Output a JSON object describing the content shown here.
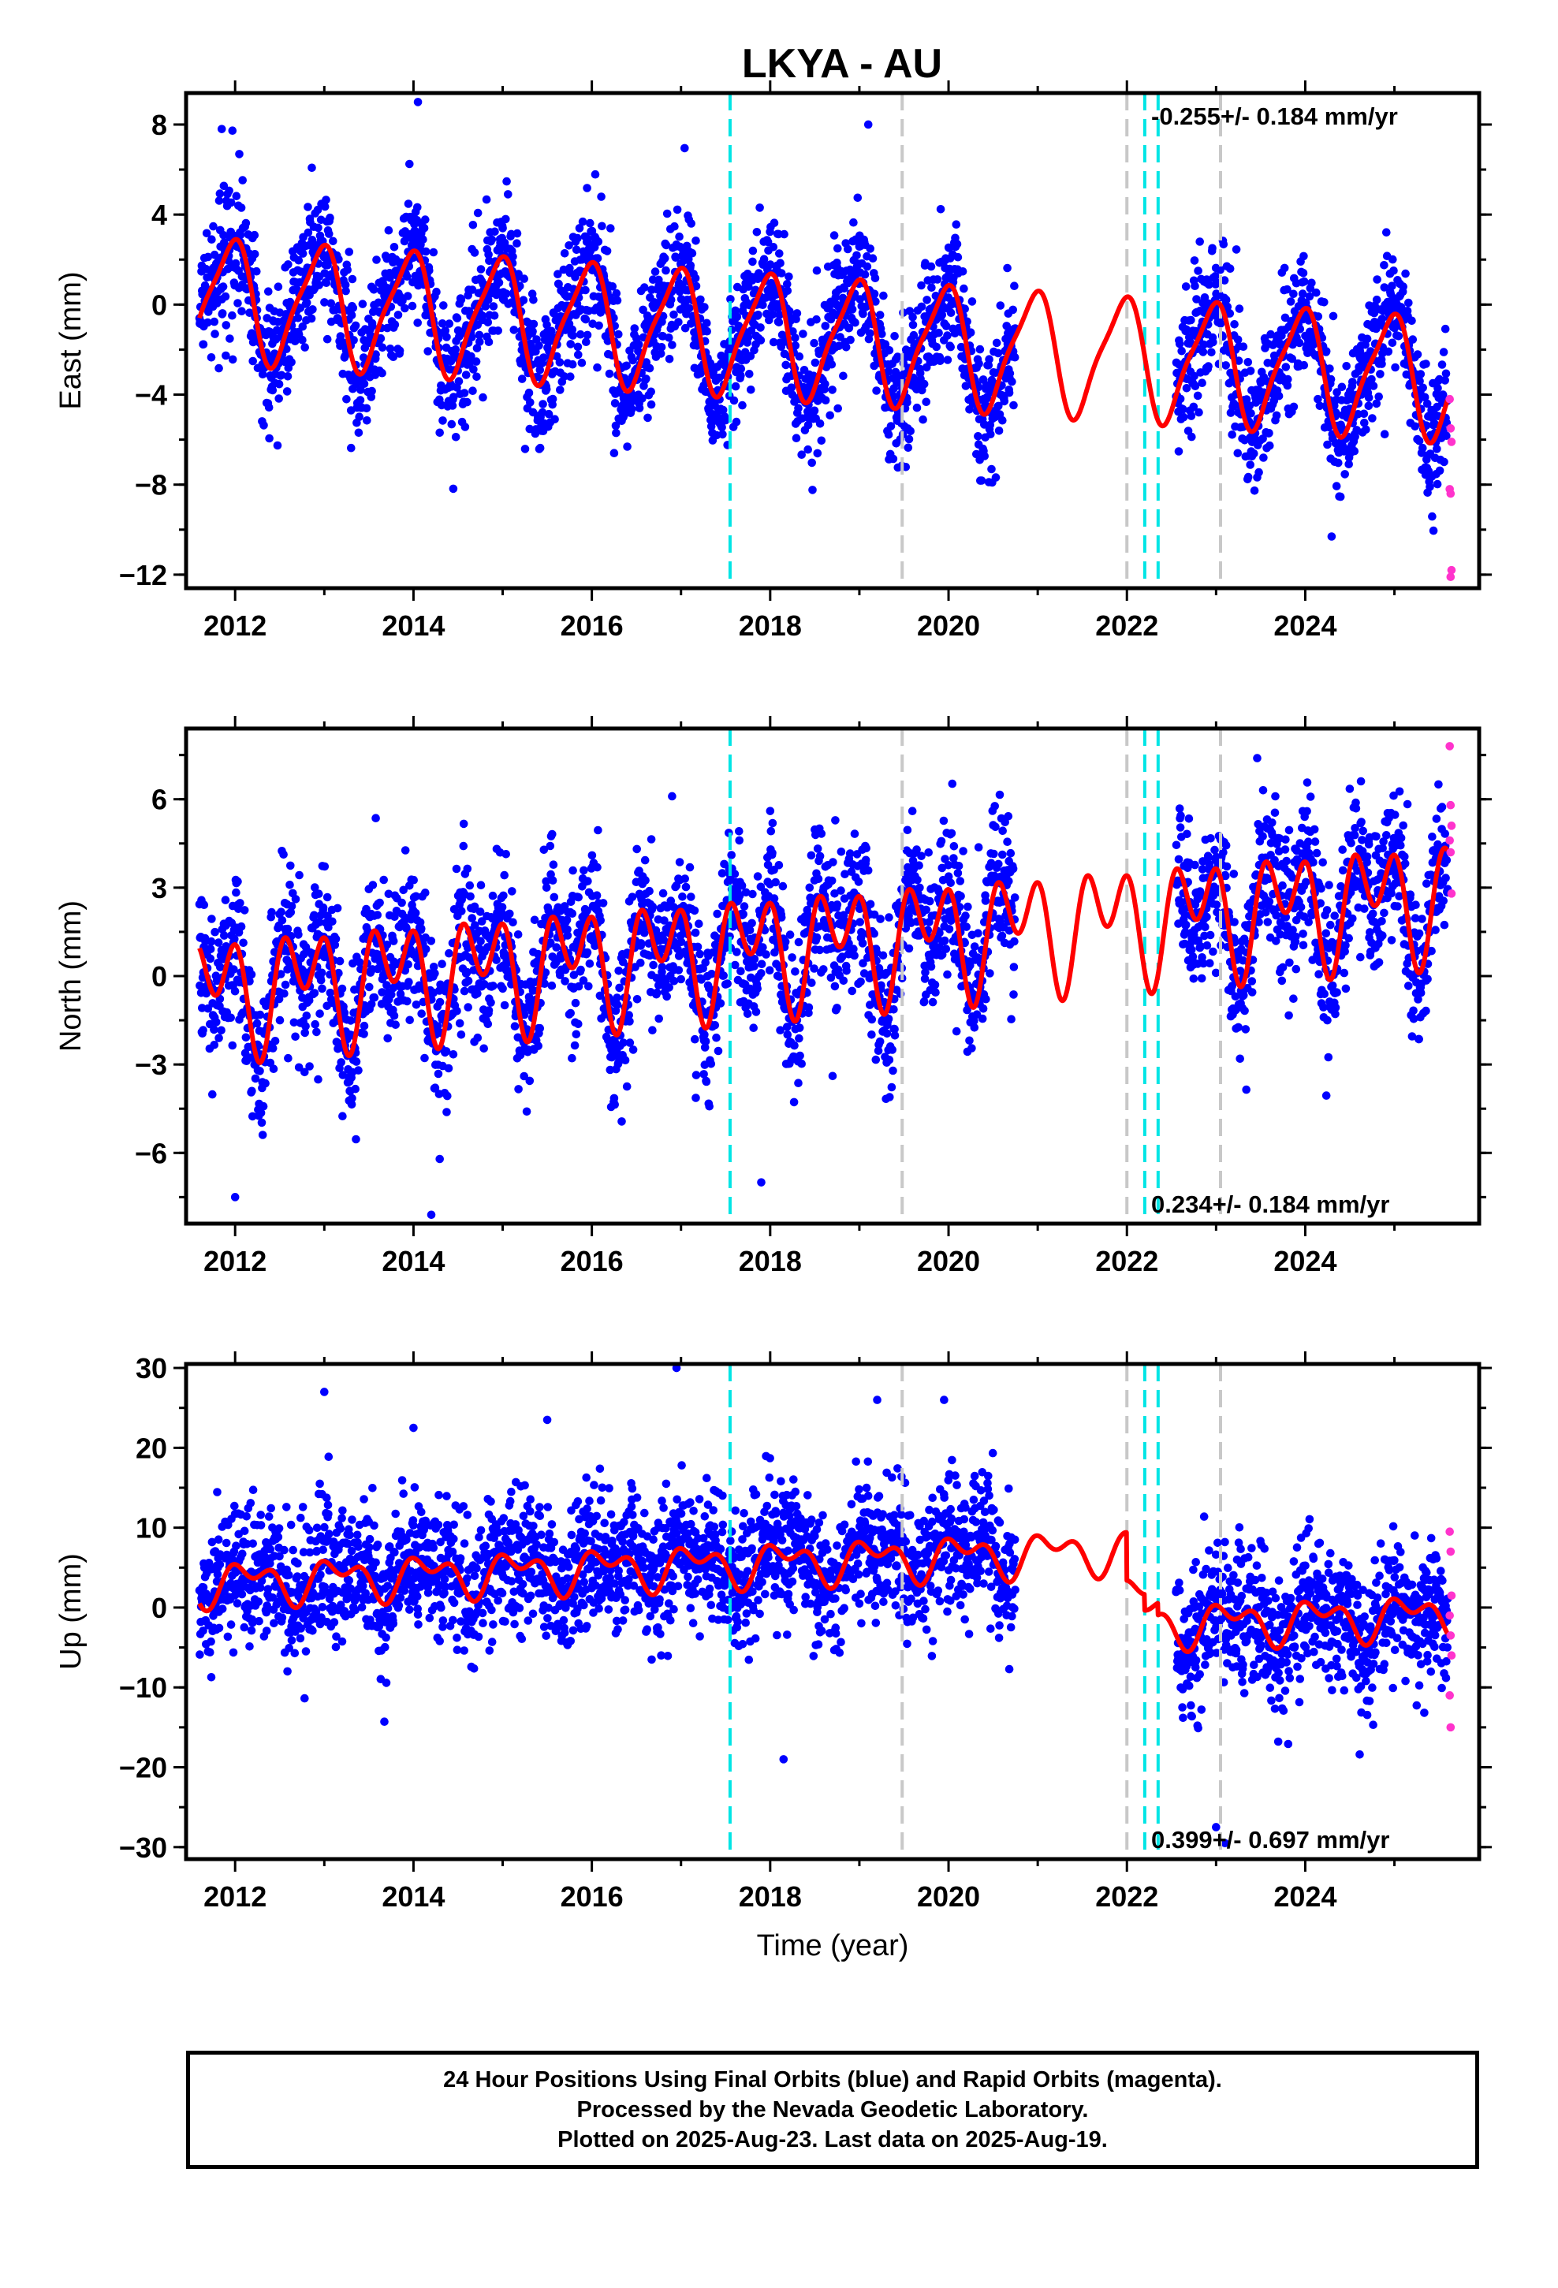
{
  "title": "LKYA - AU",
  "footer": {
    "line1": "24 Hour Positions Using Final Orbits (blue) and Rapid Orbits (magenta).",
    "line2": "Processed by the Nevada Geodetic Laboratory.",
    "line3": "Plotted on 2025-Aug-23. Last data on 2025-Aug-19."
  },
  "colors": {
    "final_orbits": "#0000ff",
    "rapid_orbits": "#ff33cc",
    "model": "#ff0000",
    "equipment_change": "#00e5e5",
    "other_event": "#c8c8c8"
  },
  "chart_data": [
    {
      "type": "scatter",
      "name": "east",
      "ylabel": "East (mm)",
      "xlabel": "",
      "xlim": [
        2011.45,
        2025.95
      ],
      "ylim": [
        -12.6,
        9.4
      ],
      "yticks": [
        -12,
        -8,
        -4,
        0,
        4,
        8
      ],
      "xticks": [
        2012,
        2014,
        2016,
        2018,
        2020,
        2022,
        2024
      ],
      "rate_label": "-0.255+/- 0.184 mm/yr",
      "rate_label_position": "top-right",
      "model": {
        "offset": 0.3,
        "trend": -0.255,
        "annual": 2.6,
        "annual_phase": 1.9,
        "semi": 0.6,
        "semi_phase": 0.4
      },
      "scatter_sigma": 1.5,
      "outliers": [
        [
          2011.85,
          7.8
        ],
        [
          2014.05,
          9.0
        ],
        [
          2019.1,
          8.0
        ],
        [
          2016.25,
          -6.6
        ],
        [
          2020.35,
          -6.9
        ],
        [
          2013.3,
          -4.7
        ]
      ],
      "rapid_points": [
        [
          2025.62,
          -4.2
        ],
        [
          2025.63,
          -5.5
        ],
        [
          2025.64,
          -6.1
        ],
        [
          2025.62,
          -8.2
        ],
        [
          2025.63,
          -8.4
        ],
        [
          2025.64,
          -11.8
        ],
        [
          2025.63,
          -12.1
        ]
      ]
    },
    {
      "type": "scatter",
      "name": "north",
      "ylabel": "North (mm)",
      "xlabel": "",
      "xlim": [
        2011.45,
        2025.95
      ],
      "ylim": [
        -8.4,
        8.4
      ],
      "yticks": [
        -6,
        -3,
        0,
        3,
        6
      ],
      "xticks": [
        2012,
        2014,
        2016,
        2018,
        2020,
        2022,
        2024
      ],
      "rate_label": "0.234+/- 0.184 mm/yr",
      "rate_label_position": "bottom-right",
      "model": {
        "offset": -0.5,
        "trend": 0.234,
        "annual": 1.2,
        "annual_phase": 3.0,
        "semi": 1.4,
        "semi_phase": 1.2
      },
      "scatter_sigma": 1.3,
      "outliers": [
        [
          2016.9,
          6.1
        ],
        [
          2018.0,
          5.6
        ],
        [
          2014.2,
          -8.1
        ],
        [
          2017.9,
          -7.0
        ],
        [
          2012.0,
          -7.5
        ]
      ],
      "rapid_points": [
        [
          2025.62,
          7.8
        ],
        [
          2025.63,
          5.8
        ],
        [
          2025.64,
          5.1
        ],
        [
          2025.62,
          4.6
        ],
        [
          2025.63,
          4.2
        ],
        [
          2025.64,
          2.8
        ]
      ]
    },
    {
      "type": "scatter",
      "name": "up",
      "ylabel": "Up (mm)",
      "xlabel": "Time (year)",
      "xlim": [
        2011.45,
        2025.95
      ],
      "ylim": [
        -31.5,
        30.5
      ],
      "yticks": [
        -30,
        -20,
        -10,
        0,
        10,
        20,
        30
      ],
      "xticks": [
        2012,
        2014,
        2016,
        2018,
        2020,
        2022,
        2024
      ],
      "rate_label": "0.399+/- 0.697 mm/yr",
      "rate_label_position": "bottom-right",
      "model": {
        "offset": 3.0,
        "trend": 0.399,
        "annual": 2.0,
        "annual_phase": 0.6,
        "semi": 1.5,
        "semi_phase": 2.3
      },
      "offsets": [
        [
          2022.0,
          -6.0
        ],
        [
          2022.2,
          -2.0
        ],
        [
          2022.35,
          -1.5
        ]
      ],
      "scatter_sigma": 4.2,
      "outliers": [
        [
          2016.95,
          30.0
        ],
        [
          2013.0,
          27.0
        ],
        [
          2019.2,
          26.0
        ],
        [
          2019.95,
          26.0
        ],
        [
          2014.0,
          22.5
        ],
        [
          2015.5,
          23.5
        ],
        [
          2023.1,
          -29.5
        ],
        [
          2018.15,
          -19.0
        ],
        [
          2023.0,
          -27.5
        ]
      ],
      "rapid_points": [
        [
          2025.62,
          9.5
        ],
        [
          2025.63,
          7.0
        ],
        [
          2025.64,
          1.5
        ],
        [
          2025.62,
          -1.0
        ],
        [
          2025.63,
          -3.5
        ],
        [
          2025.64,
          -6.0
        ],
        [
          2025.62,
          -11.0
        ],
        [
          2025.63,
          -15.0
        ]
      ]
    }
  ],
  "event_lines": [
    {
      "x": 2017.55,
      "kind": "equipment_change"
    },
    {
      "x": 2019.48,
      "kind": "other_event"
    },
    {
      "x": 2022.0,
      "kind": "other_event"
    },
    {
      "x": 2022.2,
      "kind": "equipment_change"
    },
    {
      "x": 2022.35,
      "kind": "equipment_change"
    },
    {
      "x": 2023.05,
      "kind": "other_event"
    }
  ],
  "data_gap": [
    2020.75,
    2022.55
  ],
  "data_start": 2011.6,
  "data_end": 2025.6
}
